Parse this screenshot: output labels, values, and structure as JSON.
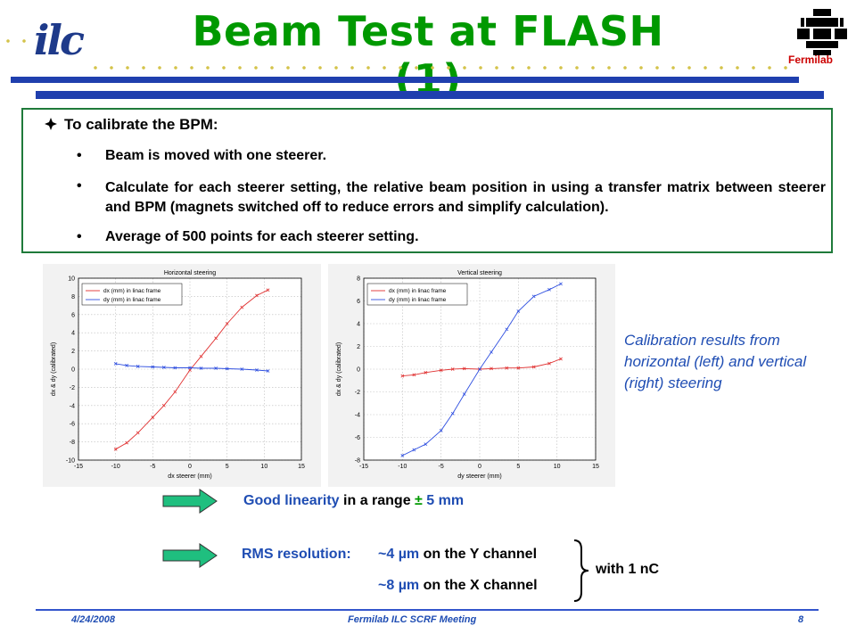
{
  "header": {
    "title": "Beam Test at FLASH (1)",
    "left_logo_text": "ilc",
    "right_logo_label": "Fermilab"
  },
  "content": {
    "heading": "To calibrate the BPM:",
    "bullets": [
      "Beam is moved with one steerer.",
      "Calculate for each steerer setting, the relative beam position in using a transfer matrix between steerer and BPM (magnets switched off to reduce errors and simplify calculation).",
      "Average of 500 points for each steerer setting."
    ],
    "bullet_char": "•"
  },
  "chart_data": [
    {
      "type": "line",
      "title": "Horizontal steering",
      "xlabel": "dx steerer (mm)",
      "ylabel": "dx & dy (calibrated)",
      "xlim": [
        -15,
        15
      ],
      "ylim": [
        -10,
        10
      ],
      "xticks": [
        -15,
        -10,
        -5,
        0,
        5,
        10,
        15
      ],
      "yticks": [
        -10,
        -8,
        -6,
        -4,
        -2,
        0,
        2,
        4,
        6,
        8,
        10
      ],
      "grid": true,
      "legend_position": "top-left",
      "series": [
        {
          "name": "dx (mm) in linac frame",
          "color": "#e03030",
          "x": [
            -10,
            -8.5,
            -7,
            -5,
            -3.5,
            -2,
            0,
            1.5,
            3.5,
            5,
            7,
            9,
            10.5
          ],
          "y": [
            -8.8,
            -8.1,
            -7.0,
            -5.3,
            -4.0,
            -2.5,
            -0.1,
            1.4,
            3.4,
            5.0,
            6.8,
            8.1,
            8.7
          ]
        },
        {
          "name": "dy (mm) in linac frame",
          "color": "#3050e0",
          "x": [
            -10,
            -8.5,
            -7,
            -5,
            -3.5,
            -2,
            0,
            1.5,
            3.5,
            5,
            7,
            9,
            10.5
          ],
          "y": [
            0.6,
            0.4,
            0.3,
            0.25,
            0.2,
            0.15,
            0.15,
            0.1,
            0.1,
            0.05,
            0.0,
            -0.1,
            -0.2
          ]
        }
      ]
    },
    {
      "type": "line",
      "title": "Vertical steering",
      "xlabel": "dy steerer (mm)",
      "ylabel": "dx & dy (calibrated)",
      "xlim": [
        -15,
        15
      ],
      "ylim": [
        -8,
        8
      ],
      "xticks": [
        -15,
        -10,
        -5,
        0,
        5,
        10,
        15
      ],
      "yticks": [
        -8,
        -6,
        -4,
        -2,
        0,
        2,
        4,
        6,
        8
      ],
      "grid": true,
      "legend_position": "top-left",
      "series": [
        {
          "name": "dx (mm) in linac frame",
          "color": "#e03030",
          "x": [
            -10,
            -8.5,
            -7,
            -5,
            -3.5,
            -2,
            0,
            1.5,
            3.5,
            5,
            7,
            9,
            10.5
          ],
          "y": [
            -0.6,
            -0.5,
            -0.3,
            -0.1,
            0.0,
            0.05,
            0.0,
            0.05,
            0.1,
            0.1,
            0.2,
            0.5,
            0.9
          ]
        },
        {
          "name": "dy (mm) in linac frame",
          "color": "#3050e0",
          "x": [
            -10,
            -8.5,
            -7,
            -5,
            -3.5,
            -2,
            0,
            1.5,
            3.5,
            5,
            7,
            9,
            10.5
          ],
          "y": [
            -7.6,
            -7.1,
            -6.6,
            -5.4,
            -3.9,
            -2.2,
            0.0,
            1.5,
            3.5,
            5.1,
            6.4,
            7.0,
            7.5
          ]
        }
      ]
    }
  ],
  "caption": "Calibration results from horizontal (left) and vertical (right) steering",
  "results": {
    "linearity_prefix": "Good linearity",
    "linearity_mid": " in a range ",
    "linearity_pm": "±",
    "linearity_value": " 5 mm",
    "rms_label": "RMS resolution:",
    "rms_y_value": "~4 µm",
    "rms_y_suffix": " on the Y channel",
    "rms_x_value": "~8 µm",
    "rms_x_suffix": " on the X channel",
    "charge_note": "with 1 nC"
  },
  "footer": {
    "date": "4/24/2008",
    "meeting": "Fermilab ILC SCRF Meeting",
    "page": "8"
  },
  "colors": {
    "title_green": "#009900",
    "bar_blue": "#1f3fae",
    "caption_blue": "#1f4db3",
    "arrow_fill": "#1fbf7f",
    "series_red": "#e03030",
    "series_blue": "#3050e0"
  }
}
